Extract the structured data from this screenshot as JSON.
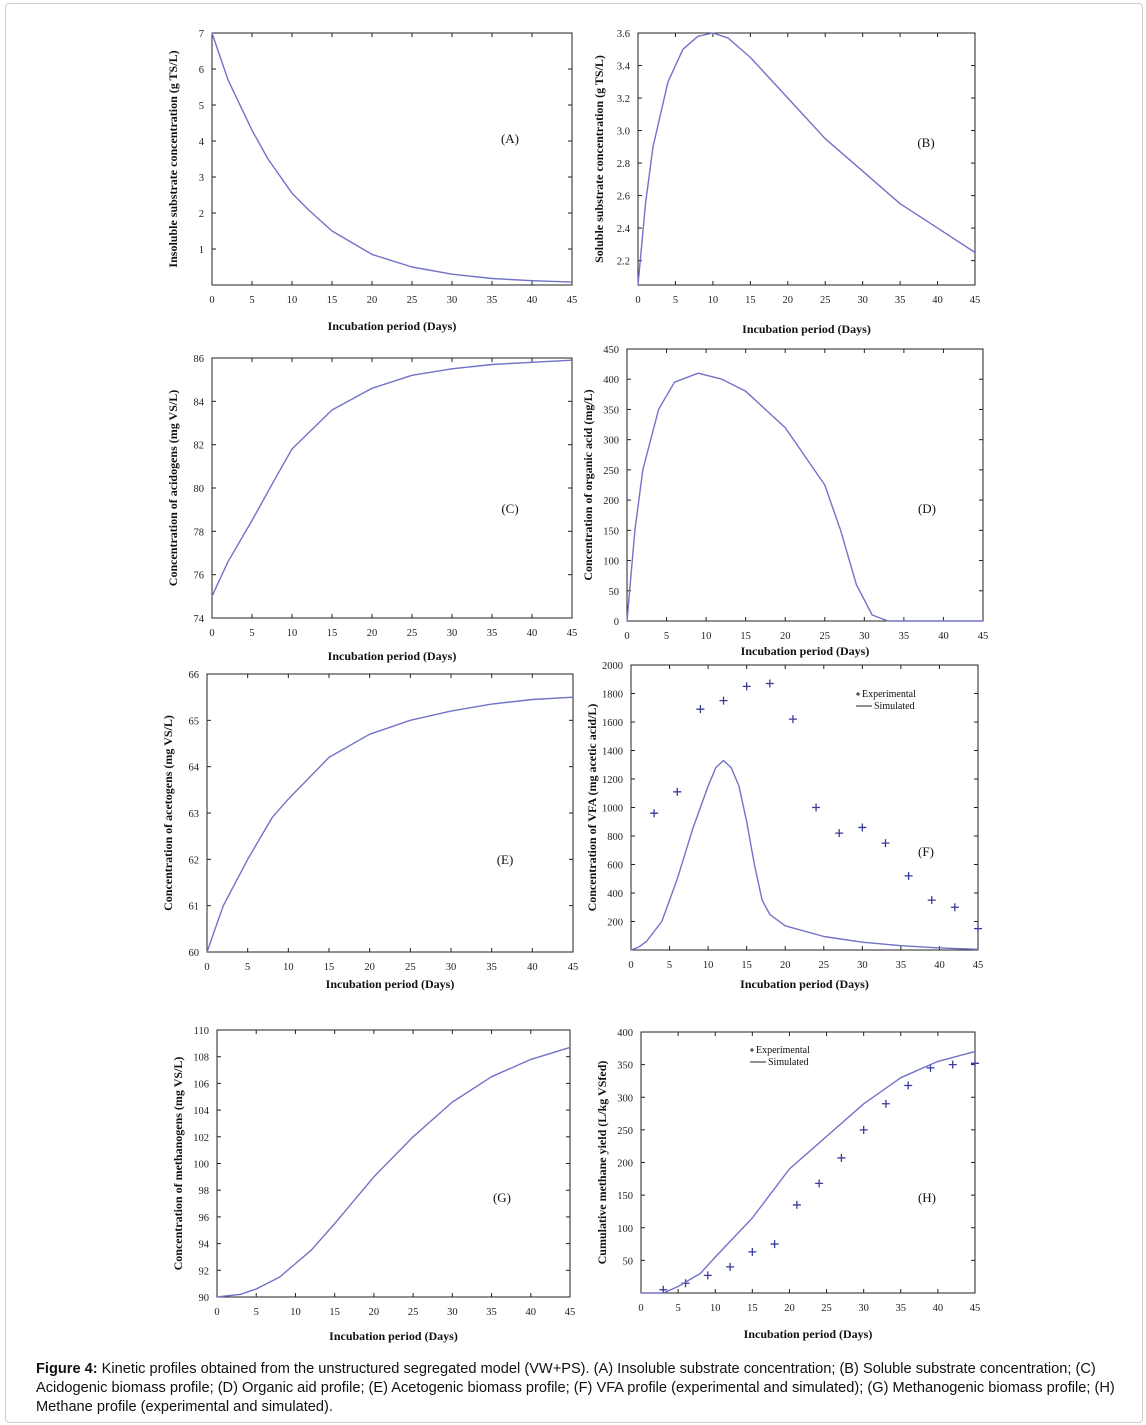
{
  "caption": {
    "label": "Figure 4:",
    "text": " Kinetic profiles obtained from the unstructured segregated model (VW+PS). (A) Insoluble substrate concentration; (B) Soluble substrate concentration; (C) Acidogenic biomass profile; (D) Organic aid profile; (E) Acetogenic biomass profile; (F) VFA profile (experimental and simulated); (G) Methanogenic biomass profile; (H) Methane profile (experimental and simulated)."
  },
  "colors": {
    "line": "#7272c8",
    "marker": "#3a3a9a",
    "axis": "#222222"
  },
  "chart_data": [
    {
      "panel": "(A)",
      "type": "line",
      "xlabel": "Incubation period (Days)",
      "ylabel": "Insoluble substrate concentration (g TS/L)",
      "xlim": [
        0,
        45
      ],
      "ylim": [
        0,
        7
      ],
      "xticks": [
        0,
        5,
        10,
        15,
        20,
        25,
        30,
        35,
        40,
        45
      ],
      "yticks": [
        1,
        2,
        3,
        4,
        5,
        6,
        7
      ],
      "series": [
        {
          "type": "line",
          "x": [
            0,
            2,
            5,
            7,
            10,
            12,
            15,
            20,
            25,
            30,
            35,
            40,
            45
          ],
          "y": [
            7,
            5.7,
            4.3,
            3.5,
            2.55,
            2.1,
            1.5,
            0.85,
            0.5,
            0.3,
            0.18,
            0.12,
            0.08
          ]
        }
      ]
    },
    {
      "panel": "(B)",
      "type": "line",
      "xlabel": "Incubation period (Days)",
      "ylabel": "Soluble substrate concentration (g TS/L)",
      "xlim": [
        0,
        45
      ],
      "ylim": [
        2.05,
        3.6
      ],
      "xticks": [
        0,
        5,
        10,
        15,
        20,
        25,
        30,
        35,
        40,
        45
      ],
      "yticks": [
        2.2,
        2.4,
        2.6,
        2.8,
        3.0,
        3.2,
        3.4,
        3.6
      ],
      "series": [
        {
          "type": "line",
          "x": [
            0,
            1,
            2,
            4,
            6,
            8,
            10,
            12,
            15,
            20,
            25,
            30,
            35,
            40,
            45
          ],
          "y": [
            2.05,
            2.55,
            2.9,
            3.3,
            3.5,
            3.58,
            3.6,
            3.57,
            3.45,
            3.2,
            2.95,
            2.75,
            2.55,
            2.4,
            2.25
          ]
        }
      ]
    },
    {
      "panel": "(C)",
      "type": "line",
      "xlabel": "Incubation period (Days)",
      "ylabel": "Concentration of acidogens (mg VS/L)",
      "xlim": [
        0,
        45
      ],
      "ylim": [
        74,
        86
      ],
      "xticks": [
        0,
        5,
        10,
        15,
        20,
        25,
        30,
        35,
        40,
        45
      ],
      "yticks": [
        74,
        76,
        78,
        80,
        82,
        84,
        86
      ],
      "series": [
        {
          "type": "line",
          "x": [
            0,
            2,
            5,
            8,
            10,
            15,
            20,
            25,
            30,
            35,
            40,
            45
          ],
          "y": [
            75,
            76.6,
            78.5,
            80.5,
            81.8,
            83.6,
            84.6,
            85.2,
            85.5,
            85.7,
            85.8,
            85.9
          ]
        }
      ]
    },
    {
      "panel": "(D)",
      "type": "line",
      "xlabel": "Incubation period (Days)",
      "ylabel": "Concentration of organic acid (mg/L)",
      "xlim": [
        0,
        45
      ],
      "ylim": [
        0,
        450
      ],
      "xticks": [
        0,
        5,
        10,
        15,
        20,
        25,
        30,
        35,
        40,
        45
      ],
      "yticks": [
        0,
        50,
        100,
        150,
        200,
        250,
        300,
        350,
        400,
        450
      ],
      "series": [
        {
          "type": "line",
          "x": [
            0,
            1,
            2,
            4,
            6,
            9,
            12,
            15,
            20,
            25,
            27,
            29,
            31,
            33,
            45
          ],
          "y": [
            0,
            150,
            250,
            350,
            395,
            410,
            400,
            380,
            320,
            225,
            150,
            60,
            10,
            0,
            0
          ]
        }
      ]
    },
    {
      "panel": "(E)",
      "type": "line",
      "xlabel": "Incubation period (Days)",
      "ylabel": "Concentration of acetogens (mg VS/L)",
      "xlim": [
        0,
        45
      ],
      "ylim": [
        60,
        66
      ],
      "xticks": [
        0,
        5,
        10,
        15,
        20,
        25,
        30,
        35,
        40,
        45
      ],
      "yticks": [
        60,
        61,
        62,
        63,
        64,
        65,
        66
      ],
      "series": [
        {
          "type": "line",
          "x": [
            0,
            2,
            5,
            8,
            10,
            15,
            20,
            25,
            30,
            35,
            40,
            45
          ],
          "y": [
            60,
            61,
            62,
            62.9,
            63.3,
            64.2,
            64.7,
            65.0,
            65.2,
            65.35,
            65.45,
            65.5
          ]
        }
      ]
    },
    {
      "panel": "(F)",
      "type": "line",
      "xlabel": "Incubation period (Days)",
      "ylabel": "Concentration of VFA (mg acetic acid/L)",
      "xlim": [
        0,
        45
      ],
      "ylim": [
        0,
        2000
      ],
      "xticks": [
        0,
        5,
        10,
        15,
        20,
        25,
        30,
        35,
        40,
        45
      ],
      "yticks": [
        200,
        400,
        600,
        800,
        1000,
        1200,
        1400,
        1600,
        1800,
        2000
      ],
      "legend": [
        "Experimental",
        "Simulated"
      ],
      "series": [
        {
          "name": "Experimental",
          "type": "scatter",
          "x": [
            3,
            6,
            9,
            12,
            15,
            18,
            21,
            24,
            27,
            30,
            33,
            36,
            39,
            42,
            45
          ],
          "y": [
            960,
            1110,
            1690,
            1750,
            1850,
            1870,
            1620,
            1000,
            820,
            860,
            750,
            520,
            350,
            300,
            150
          ]
        },
        {
          "name": "Simulated",
          "type": "line",
          "x": [
            0,
            1,
            2,
            4,
            6,
            8,
            10,
            11,
            12,
            13,
            14,
            15,
            16,
            17,
            18,
            20,
            25,
            30,
            35,
            40,
            45
          ],
          "y": [
            0,
            20,
            60,
            200,
            500,
            850,
            1150,
            1280,
            1330,
            1280,
            1150,
            900,
            600,
            350,
            250,
            170,
            95,
            55,
            30,
            15,
            5
          ]
        }
      ]
    },
    {
      "panel": "(G)",
      "type": "line",
      "xlabel": "Incubation period (Days)",
      "ylabel": "Concentration of methanogens (mg VS/L)",
      "xlim": [
        0,
        45
      ],
      "ylim": [
        90,
        110
      ],
      "xticks": [
        0,
        5,
        10,
        15,
        20,
        25,
        30,
        35,
        40,
        45
      ],
      "yticks": [
        90,
        92,
        94,
        96,
        98,
        100,
        102,
        104,
        106,
        108,
        110
      ],
      "series": [
        {
          "type": "line",
          "x": [
            0,
            3,
            5,
            8,
            10,
            12,
            15,
            20,
            25,
            30,
            35,
            40,
            45
          ],
          "y": [
            90,
            90.2,
            90.6,
            91.5,
            92.5,
            93.5,
            95.5,
            99,
            102,
            104.6,
            106.5,
            107.8,
            108.7
          ]
        }
      ]
    },
    {
      "panel": "(H)",
      "type": "line",
      "xlabel": "Incubation period (Days)",
      "ylabel": "Cumulative methane yield (L/kg VSfed)",
      "xlim": [
        0,
        45
      ],
      "ylim": [
        0,
        400
      ],
      "xticks": [
        0,
        5,
        10,
        15,
        20,
        25,
        30,
        35,
        40,
        45
      ],
      "yticks": [
        50,
        100,
        150,
        200,
        250,
        300,
        350,
        400
      ],
      "legend": [
        "Experimental",
        "Simulated"
      ],
      "series": [
        {
          "name": "Experimental",
          "type": "scatter",
          "x": [
            3,
            6,
            9,
            12,
            15,
            18,
            21,
            24,
            27,
            30,
            33,
            36,
            39,
            42,
            45
          ],
          "y": [
            5,
            15,
            27,
            40,
            63,
            75,
            135,
            168,
            207,
            250,
            290,
            318,
            345,
            350,
            352
          ]
        },
        {
          "name": "Simulated",
          "type": "line",
          "x": [
            0,
            3,
            5,
            8,
            10,
            15,
            20,
            25,
            30,
            35,
            40,
            45
          ],
          "y": [
            0,
            0,
            10,
            30,
            55,
            115,
            190,
            240,
            290,
            330,
            355,
            370
          ]
        }
      ]
    }
  ]
}
